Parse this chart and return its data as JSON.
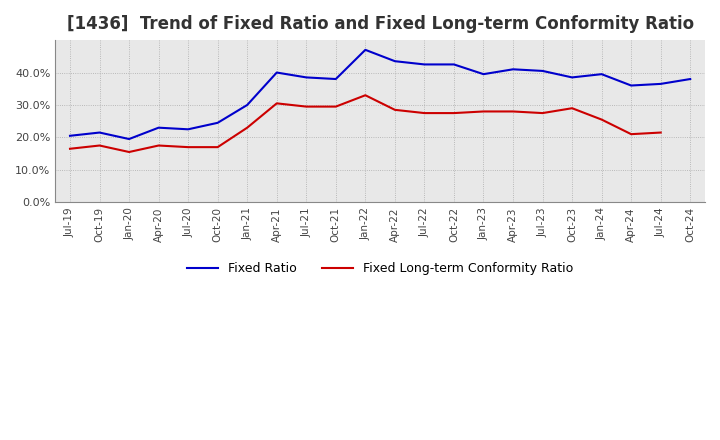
{
  "title": "[1436]  Trend of Fixed Ratio and Fixed Long-term Conformity Ratio",
  "x_labels": [
    "Jul-19",
    "Oct-19",
    "Jan-20",
    "Apr-20",
    "Jul-20",
    "Oct-20",
    "Jan-21",
    "Apr-21",
    "Jul-21",
    "Oct-21",
    "Jan-22",
    "Apr-22",
    "Jul-22",
    "Oct-22",
    "Jan-23",
    "Apr-23",
    "Jul-23",
    "Oct-23",
    "Jan-24",
    "Apr-24",
    "Jul-24",
    "Oct-24"
  ],
  "fixed_ratio": [
    20.5,
    21.5,
    19.5,
    23.0,
    22.5,
    24.5,
    30.0,
    40.0,
    38.5,
    38.0,
    47.0,
    43.5,
    42.5,
    42.5,
    39.5,
    41.0,
    40.5,
    38.5,
    39.5,
    36.0,
    36.5,
    38.0
  ],
  "fixed_lt_ratio": [
    16.5,
    17.5,
    15.5,
    17.5,
    17.0,
    17.0,
    23.0,
    30.5,
    29.5,
    29.5,
    33.0,
    28.5,
    27.5,
    27.5,
    28.0,
    28.0,
    27.5,
    29.0,
    25.5,
    21.0,
    21.5,
    null
  ],
  "fixed_ratio_color": "#0000CC",
  "fixed_lt_ratio_color": "#CC0000",
  "ylim": [
    0.0,
    50.0
  ],
  "yticks": [
    0.0,
    10.0,
    20.0,
    30.0,
    40.0
  ],
  "background_color": "#FFFFFF",
  "plot_bg_color": "#E8E8E8",
  "grid_color": "#AAAAAA",
  "title_fontsize": 12,
  "legend_labels": [
    "Fixed Ratio",
    "Fixed Long-term Conformity Ratio"
  ]
}
